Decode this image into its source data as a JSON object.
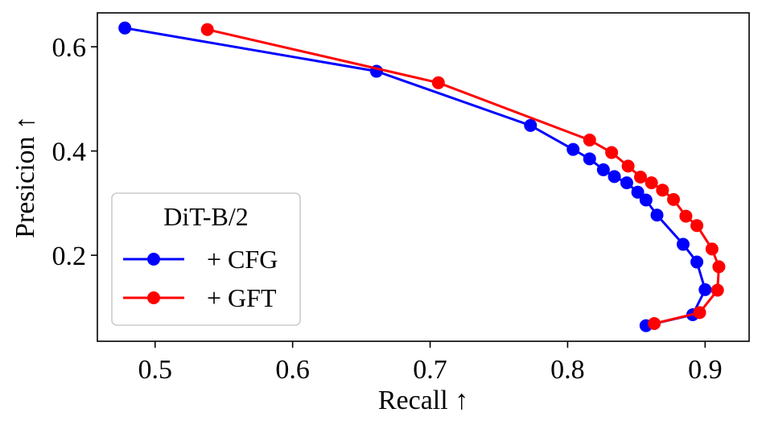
{
  "chart_data": {
    "type": "line",
    "title": "",
    "xlabel": "Recall ↑",
    "ylabel": "Presicion ↑",
    "xlim": [
      0.458,
      0.932
    ],
    "ylim": [
      0.035,
      0.665
    ],
    "x_ticks": [
      0.5,
      0.6,
      0.7,
      0.8,
      0.9
    ],
    "x_tick_labels": [
      "0.5",
      "0.6",
      "0.7",
      "0.8",
      "0.9"
    ],
    "y_ticks": [
      0.2,
      0.4,
      0.6
    ],
    "y_tick_labels": [
      "0.2",
      "0.4",
      "0.6"
    ],
    "grid": false,
    "legend": {
      "title": "DiT-B/2",
      "placement": "lower-left"
    },
    "series": [
      {
        "name": "+ CFG",
        "color": "#0000ff",
        "points": [
          {
            "x": 0.478,
            "y": 0.636
          },
          {
            "x": 0.661,
            "y": 0.553
          },
          {
            "x": 0.773,
            "y": 0.449
          },
          {
            "x": 0.804,
            "y": 0.403
          },
          {
            "x": 0.816,
            "y": 0.385
          },
          {
            "x": 0.826,
            "y": 0.364
          },
          {
            "x": 0.834,
            "y": 0.351
          },
          {
            "x": 0.843,
            "y": 0.339
          },
          {
            "x": 0.851,
            "y": 0.321
          },
          {
            "x": 0.857,
            "y": 0.306
          },
          {
            "x": 0.865,
            "y": 0.277
          },
          {
            "x": 0.884,
            "y": 0.221
          },
          {
            "x": 0.894,
            "y": 0.187
          },
          {
            "x": 0.9,
            "y": 0.134
          },
          {
            "x": 0.891,
            "y": 0.086
          },
          {
            "x": 0.857,
            "y": 0.065
          }
        ]
      },
      {
        "name": "+ GFT",
        "color": "#ff0000",
        "points": [
          {
            "x": 0.538,
            "y": 0.633
          },
          {
            "x": 0.706,
            "y": 0.531
          },
          {
            "x": 0.816,
            "y": 0.421
          },
          {
            "x": 0.832,
            "y": 0.397
          },
          {
            "x": 0.844,
            "y": 0.371
          },
          {
            "x": 0.853,
            "y": 0.35
          },
          {
            "x": 0.861,
            "y": 0.339
          },
          {
            "x": 0.869,
            "y": 0.325
          },
          {
            "x": 0.877,
            "y": 0.307
          },
          {
            "x": 0.886,
            "y": 0.275
          },
          {
            "x": 0.894,
            "y": 0.257
          },
          {
            "x": 0.905,
            "y": 0.212
          },
          {
            "x": 0.91,
            "y": 0.178
          },
          {
            "x": 0.909,
            "y": 0.133
          },
          {
            "x": 0.896,
            "y": 0.09
          },
          {
            "x": 0.863,
            "y": 0.069
          }
        ]
      }
    ]
  }
}
